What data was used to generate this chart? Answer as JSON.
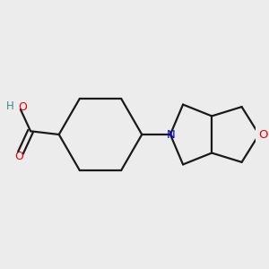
{
  "bg_color": "#ececec",
  "bond_color": "#1a1a1a",
  "N_color": "#0000ee",
  "O_color": "#ee0000",
  "H_color": "#3a8a8a",
  "line_width": 1.6,
  "fig_width": 3.0,
  "fig_height": 3.0,
  "dpi": 100,
  "xlim": [
    -2.6,
    1.8
  ],
  "ylim": [
    -1.3,
    1.3
  ]
}
